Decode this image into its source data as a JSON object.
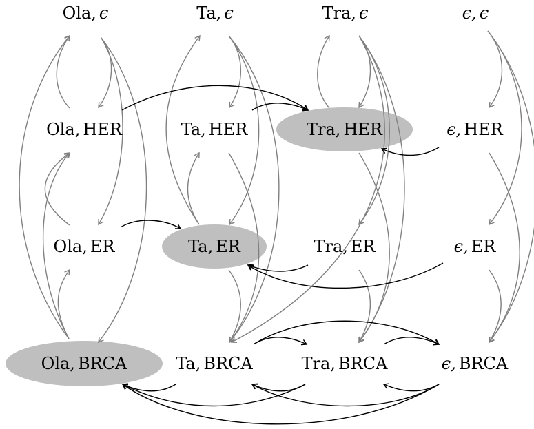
{
  "colors": {
    "highlight": "#bfbfbf",
    "gray_edge": "#808080",
    "black_edge": "#000000"
  },
  "nodes": [
    {
      "id": "ola-eps",
      "parts": [
        "Ola,",
        "ϵ"
      ]
    },
    {
      "id": "ta-eps",
      "parts": [
        "Ta,",
        "ϵ"
      ]
    },
    {
      "id": "tra-eps",
      "parts": [
        "Tra,",
        "ϵ"
      ]
    },
    {
      "id": "eps-eps",
      "parts": [
        "ϵ,",
        "ϵ"
      ]
    },
    {
      "id": "ola-her",
      "parts": [
        "Ola,",
        "HER"
      ]
    },
    {
      "id": "ta-her",
      "parts": [
        "Ta,",
        "HER"
      ]
    },
    {
      "id": "tra-her",
      "parts": [
        "Tra,",
        "HER"
      ],
      "highlighted": true
    },
    {
      "id": "eps-her",
      "parts": [
        "ϵ,",
        "HER"
      ]
    },
    {
      "id": "ola-er",
      "parts": [
        "Ola,",
        "ER"
      ]
    },
    {
      "id": "ta-er",
      "parts": [
        "Ta,",
        "ER"
      ],
      "highlighted": true
    },
    {
      "id": "tra-er",
      "parts": [
        "Tra,",
        "ER"
      ]
    },
    {
      "id": "eps-er",
      "parts": [
        "ϵ,",
        "ER"
      ]
    },
    {
      "id": "ola-brca",
      "parts": [
        "Ola,",
        "BRCA"
      ],
      "highlighted": true
    },
    {
      "id": "ta-brca",
      "parts": [
        "Ta,",
        "BRCA"
      ]
    },
    {
      "id": "tra-brca",
      "parts": [
        "Tra,",
        "BRCA"
      ]
    },
    {
      "id": "eps-brca",
      "parts": [
        "ϵ,",
        "BRCA"
      ]
    }
  ],
  "edges": [
    {
      "from": "ola-eps",
      "to": "ola-her",
      "color": "gray"
    },
    {
      "from": "ola-eps",
      "to": "ola-er",
      "color": "gray"
    },
    {
      "from": "ola-eps",
      "to": "ola-brca",
      "color": "gray"
    },
    {
      "from": "ola-her",
      "to": "ola-eps",
      "color": "gray"
    },
    {
      "from": "ola-er",
      "to": "ola-her",
      "color": "gray"
    },
    {
      "from": "ola-brca",
      "to": "ola-eps",
      "color": "gray"
    },
    {
      "from": "ola-brca",
      "to": "ola-her",
      "color": "gray"
    },
    {
      "from": "ola-brca",
      "to": "ola-er",
      "color": "gray"
    },
    {
      "from": "ta-eps",
      "to": "ta-her",
      "color": "gray"
    },
    {
      "from": "ta-eps",
      "to": "ta-er",
      "color": "gray"
    },
    {
      "from": "ta-eps",
      "to": "ta-brca",
      "color": "gray"
    },
    {
      "from": "ta-er",
      "to": "ta-eps",
      "color": "gray"
    },
    {
      "from": "ta-er",
      "to": "ta-her",
      "color": "gray"
    },
    {
      "from": "ta-her",
      "to": "ta-brca",
      "color": "gray"
    },
    {
      "from": "ta-er",
      "to": "ta-brca",
      "color": "gray"
    },
    {
      "from": "tra-eps",
      "to": "tra-her",
      "color": "gray"
    },
    {
      "from": "tra-eps",
      "to": "tra-er",
      "color": "gray"
    },
    {
      "from": "tra-eps",
      "to": "tra-brca",
      "color": "gray"
    },
    {
      "from": "tra-eps",
      "to": "ta-brca",
      "color": "gray"
    },
    {
      "from": "tra-her",
      "to": "tra-eps",
      "color": "gray"
    },
    {
      "from": "tra-her",
      "to": "tra-brca",
      "color": "gray"
    },
    {
      "from": "tra-er",
      "to": "tra-brca",
      "color": "gray"
    },
    {
      "from": "eps-eps",
      "to": "eps-her",
      "color": "gray"
    },
    {
      "from": "eps-eps",
      "to": "eps-er",
      "color": "gray"
    },
    {
      "from": "eps-eps",
      "to": "eps-brca",
      "color": "gray"
    },
    {
      "from": "eps-her",
      "to": "eps-brca",
      "color": "gray"
    },
    {
      "from": "eps-er",
      "to": "eps-brca",
      "color": "gray"
    },
    {
      "from": "ola-her",
      "to": "tra-her",
      "color": "black"
    },
    {
      "from": "ta-her",
      "to": "tra-her",
      "color": "black"
    },
    {
      "from": "eps-her",
      "to": "tra-her",
      "color": "black"
    },
    {
      "from": "ola-er",
      "to": "ta-er",
      "color": "black"
    },
    {
      "from": "tra-er",
      "to": "ta-er",
      "color": "black"
    },
    {
      "from": "eps-er",
      "to": "ta-er",
      "color": "black"
    },
    {
      "from": "ta-brca",
      "to": "tra-brca",
      "color": "black"
    },
    {
      "from": "ta-brca",
      "to": "eps-brca",
      "color": "black"
    },
    {
      "from": "tra-brca",
      "to": "eps-brca",
      "color": "black"
    },
    {
      "from": "ta-brca",
      "to": "ola-brca",
      "color": "black"
    },
    {
      "from": "tra-brca",
      "to": "ola-brca",
      "color": "black"
    },
    {
      "from": "eps-brca",
      "to": "ola-brca",
      "color": "black"
    },
    {
      "from": "tra-brca",
      "to": "ta-brca",
      "color": "black"
    },
    {
      "from": "eps-brca",
      "to": "ta-brca",
      "color": "black"
    },
    {
      "from": "eps-brca",
      "to": "tra-brca",
      "color": "black"
    }
  ]
}
